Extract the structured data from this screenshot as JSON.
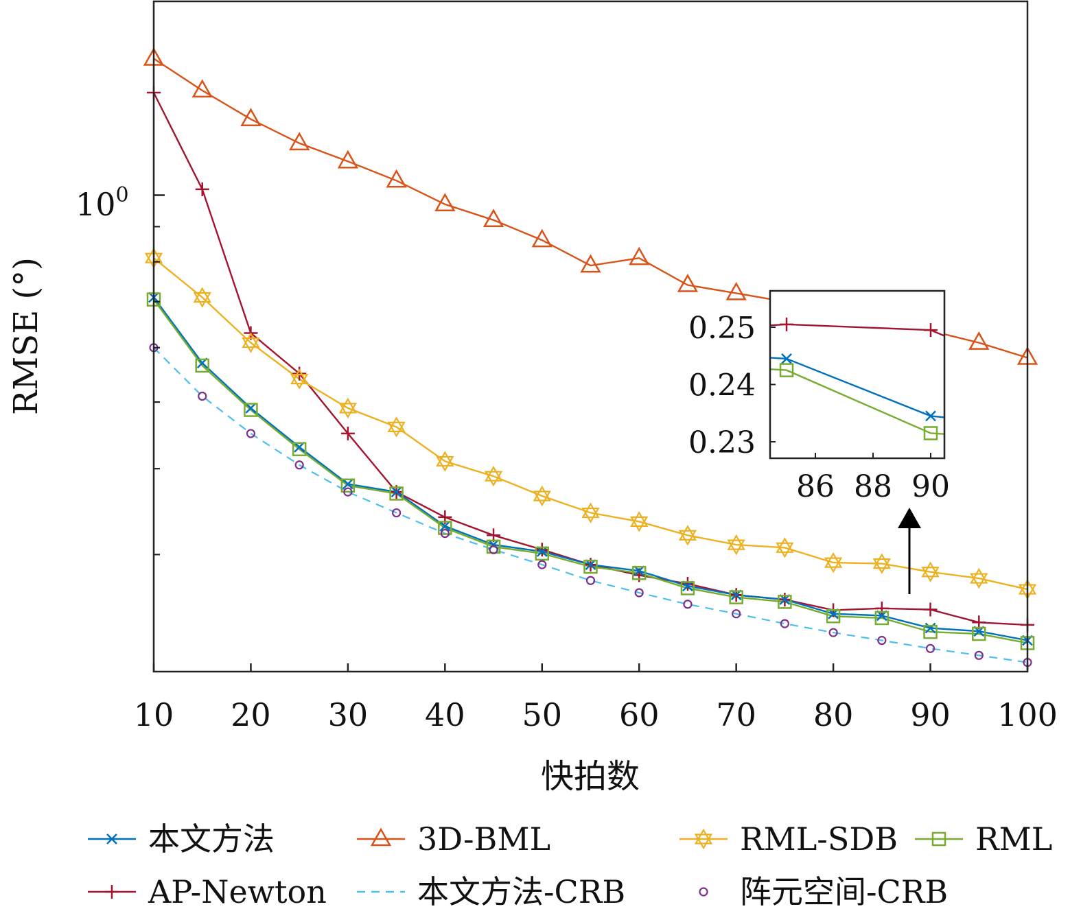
{
  "chart_data": {
    "type": "line",
    "title": "",
    "xlabel": "快拍数",
    "ylabel": "RMSE (°)",
    "yscale": "log",
    "grid": false,
    "legend_position": "bottom",
    "xlim": [
      10,
      100
    ],
    "ylim": [
      0.22,
      1.78
    ],
    "x_ticks": [
      "10",
      "20",
      "30",
      "40",
      "50",
      "60",
      "70",
      "80",
      "90",
      "100"
    ],
    "y_tick_base": "10",
    "y_tick_exp": "0",
    "x": [
      10,
      15,
      20,
      25,
      30,
      35,
      40,
      45,
      50,
      55,
      60,
      65,
      70,
      75,
      80,
      85,
      90,
      95,
      100
    ],
    "series": [
      {
        "name": "3D-BML",
        "color": "#D95319",
        "marker": "triangle",
        "line": "solid",
        "values": [
          1.58,
          1.42,
          1.29,
          1.19,
          1.12,
          1.05,
          0.97,
          0.92,
          0.86,
          0.79,
          0.81,
          0.74,
          0.72,
          0.7,
          0.66,
          0.65,
          0.635,
          0.61,
          0.58
        ]
      },
      {
        "name": "AP-Newton",
        "color": "#A2142F",
        "marker": "plus",
        "line": "solid",
        "values": [
          1.41,
          1.02,
          0.63,
          0.55,
          0.45,
          0.37,
          0.34,
          0.32,
          0.305,
          0.29,
          0.28,
          0.272,
          0.262,
          0.258,
          0.249,
          0.2505,
          0.2495,
          0.239,
          0.237
        ]
      },
      {
        "name": "RML-SDB",
        "color": "#EDB120",
        "marker": "hexagram",
        "line": "solid",
        "values": [
          0.81,
          0.71,
          0.61,
          0.54,
          0.49,
          0.46,
          0.41,
          0.39,
          0.365,
          0.345,
          0.335,
          0.32,
          0.31,
          0.307,
          0.292,
          0.291,
          0.283,
          0.277,
          0.267
        ]
      },
      {
        "name": "本文方法",
        "color": "#0072BD",
        "marker": "x",
        "line": "solid",
        "values": [
          0.71,
          0.57,
          0.49,
          0.43,
          0.38,
          0.37,
          0.33,
          0.31,
          0.303,
          0.29,
          0.284,
          0.27,
          0.262,
          0.258,
          0.246,
          0.2445,
          0.2345,
          0.232,
          0.225
        ]
      },
      {
        "name": "RML",
        "color": "#77AC30",
        "marker": "square",
        "line": "solid",
        "values": [
          0.705,
          0.565,
          0.487,
          0.427,
          0.378,
          0.368,
          0.328,
          0.308,
          0.301,
          0.288,
          0.282,
          0.268,
          0.26,
          0.256,
          0.244,
          0.2425,
          0.2315,
          0.23,
          0.223
        ]
      },
      {
        "name": "本文方法-CRB",
        "color": "#4DBEEE",
        "marker": "none",
        "line": "dashed",
        "values": [
          0.6,
          0.51,
          0.45,
          0.405,
          0.37,
          0.345,
          0.322,
          0.305,
          0.29,
          0.275,
          0.264,
          0.254,
          0.246,
          0.238,
          0.231,
          0.225,
          0.219,
          0.214,
          0.209
        ]
      },
      {
        "name": "阵元空间-CRB",
        "color": "#7E2F8E",
        "marker": "circle",
        "line": "none",
        "values": [
          0.6,
          0.51,
          0.45,
          0.405,
          0.37,
          0.345,
          0.322,
          0.305,
          0.29,
          0.275,
          0.264,
          0.254,
          0.246,
          0.238,
          0.231,
          0.225,
          0.219,
          0.214,
          0.209
        ]
      }
    ],
    "inset": {
      "xlim": [
        84.5,
        90.5
      ],
      "ylim": [
        0.227,
        0.2535
      ],
      "x_ticks": [
        "86",
        "88",
        "90"
      ],
      "y_ticks": [
        "0.25",
        "0.24",
        "0.23"
      ]
    },
    "legend": [
      {
        "label": "本文方法",
        "series": "本文方法"
      },
      {
        "label": "3D-BML",
        "series": "3D-BML"
      },
      {
        "label": "RML-SDB",
        "series": "RML-SDB"
      },
      {
        "label": "RML",
        "series": "RML"
      },
      {
        "label": "AP-Newton",
        "series": "AP-Newton"
      },
      {
        "label": "本文方法-CRB",
        "series": "本文方法-CRB"
      },
      {
        "label": "阵元空间-CRB",
        "series": "阵元空间-CRB"
      }
    ]
  }
}
